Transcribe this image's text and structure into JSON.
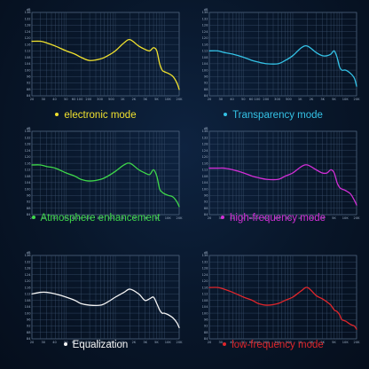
{
  "chart_data": [
    {
      "type": "line",
      "name": "electronic mode",
      "color": "#f0e12e",
      "x": [
        20,
        30,
        40,
        60,
        100,
        150,
        200,
        300,
        500,
        700,
        1000,
        1500,
        2000,
        3000,
        4000,
        5000,
        6000,
        7000,
        8000,
        9000,
        10000,
        12000,
        15000,
        18000,
        20000
      ],
      "y": [
        118,
        118,
        117,
        115,
        112,
        110,
        108,
        106,
        107,
        109,
        112,
        117,
        119,
        115,
        113,
        112,
        114,
        112,
        104,
        100,
        99,
        98,
        96,
        92,
        88
      ],
      "ylabel": "dB",
      "yticks": [
        84,
        88,
        92,
        96,
        100,
        104,
        108,
        112,
        116,
        120,
        124,
        128,
        132,
        136
      ],
      "xticks": [
        "20",
        "30",
        "40",
        "50",
        "60 100",
        "200",
        "300",
        "500",
        "1K",
        "2K",
        "3K",
        "5K",
        "10K",
        "20K"
      ],
      "ylim": [
        84,
        136
      ]
    },
    {
      "type": "line",
      "name": "Transparency mode",
      "color": "#34c2e6",
      "x": [
        20,
        30,
        40,
        60,
        100,
        150,
        200,
        300,
        500,
        700,
        1000,
        1500,
        2000,
        3000,
        4000,
        5000,
        6000,
        7000,
        8000,
        9000,
        10000,
        12000,
        15000,
        18000,
        20000
      ],
      "y": [
        112,
        112,
        111,
        110,
        108,
        106,
        105,
        104,
        104,
        106,
        109,
        114,
        115,
        111,
        109,
        109,
        110,
        112,
        108,
        102,
        100,
        100,
        98,
        95,
        90
      ],
      "ylabel": "dB",
      "yticks": [
        84,
        88,
        92,
        96,
        100,
        104,
        108,
        112,
        116,
        120,
        124,
        128,
        132,
        136
      ],
      "xticks": [
        "20",
        "30",
        "40",
        "50",
        "60 100",
        "200",
        "300",
        "500",
        "1K",
        "2K",
        "3K",
        "5K",
        "10K",
        "20K"
      ],
      "ylim": [
        84,
        136
      ]
    },
    {
      "type": "line",
      "name": "Atmosphere enhancement",
      "color": "#3ed84a",
      "x": [
        20,
        30,
        40,
        60,
        100,
        150,
        200,
        300,
        500,
        700,
        1000,
        1500,
        2000,
        3000,
        4000,
        5000,
        6000,
        7000,
        8000,
        9000,
        10000,
        12000,
        15000,
        18000,
        20000
      ],
      "y": [
        115,
        115,
        114,
        113,
        110,
        108,
        106,
        105,
        106,
        108,
        111,
        115,
        116,
        112,
        110,
        109,
        112,
        108,
        100,
        98,
        97,
        96,
        95,
        92,
        89
      ],
      "ylabel": "dB",
      "yticks": [
        84,
        88,
        92,
        96,
        100,
        104,
        108,
        112,
        116,
        120,
        124,
        128,
        132,
        136
      ],
      "xticks": [
        "20",
        "30",
        "40",
        "50",
        "60 100",
        "200",
        "300",
        "500",
        "1K",
        "2K",
        "3K",
        "5K",
        "10K",
        "20K"
      ],
      "ylim": [
        84,
        136
      ]
    },
    {
      "type": "line",
      "name": "high-frequency mode",
      "color": "#d22ed6",
      "x": [
        20,
        30,
        40,
        60,
        100,
        150,
        200,
        300,
        500,
        700,
        1000,
        1500,
        2000,
        3000,
        4000,
        5000,
        6000,
        7000,
        8000,
        9000,
        10000,
        12000,
        15000,
        18000,
        20000
      ],
      "y": [
        113,
        113,
        113,
        112,
        110,
        108,
        107,
        106,
        106,
        108,
        110,
        114,
        115,
        112,
        110,
        110,
        112,
        110,
        104,
        101,
        100,
        99,
        97,
        93,
        90
      ],
      "ylabel": "dB",
      "yticks": [
        84,
        88,
        92,
        96,
        100,
        104,
        108,
        112,
        116,
        120,
        124,
        128,
        132,
        136
      ],
      "xticks": [
        "20",
        "30",
        "40",
        "50",
        "60 100",
        "200",
        "300",
        "500",
        "1K",
        "2K",
        "3K",
        "5K",
        "10K",
        "20K"
      ],
      "ylim": [
        84,
        136
      ]
    },
    {
      "type": "line",
      "name": "Equalization",
      "color": "#f4f4f4",
      "x": [
        20,
        30,
        40,
        60,
        100,
        150,
        200,
        300,
        500,
        700,
        1000,
        1500,
        2000,
        3000,
        4000,
        5000,
        6000,
        7000,
        8000,
        9000,
        10000,
        12000,
        15000,
        18000,
        20000
      ],
      "y": [
        112,
        113,
        113,
        112,
        110,
        108,
        106,
        105,
        105,
        107,
        110,
        113,
        115,
        112,
        108,
        109,
        110,
        106,
        102,
        100,
        100,
        99,
        97,
        94,
        91
      ],
      "ylabel": "dB",
      "yticks": [
        84,
        88,
        92,
        96,
        100,
        104,
        108,
        112,
        116,
        120,
        124,
        128,
        132,
        136
      ],
      "xticks": [
        "20",
        "30",
        "40",
        "50",
        "60 100",
        "200",
        "300",
        "500",
        "1K",
        "2K",
        "3K",
        "5K",
        "10K",
        "20K"
      ],
      "ylim": [
        84,
        136
      ]
    },
    {
      "type": "line",
      "name": "low-frequency mode",
      "color": "#e0262b",
      "x": [
        20,
        30,
        40,
        60,
        100,
        150,
        200,
        300,
        500,
        700,
        1000,
        1500,
        2000,
        3000,
        4000,
        5000,
        6000,
        7000,
        8000,
        9000,
        10000,
        12000,
        15000,
        18000,
        20000
      ],
      "y": [
        116,
        116,
        115,
        113,
        110,
        108,
        106,
        105,
        106,
        108,
        110,
        114,
        116,
        111,
        109,
        107,
        105,
        102,
        101,
        99,
        96,
        95,
        93,
        92,
        90
      ],
      "ylabel": "dB",
      "yticks": [
        84,
        88,
        92,
        96,
        100,
        104,
        108,
        112,
        116,
        120,
        124,
        128,
        132,
        136
      ],
      "xticks": [
        "20",
        "30",
        "40",
        "50",
        "60 100",
        "200",
        "300",
        "500",
        "1K",
        "2K",
        "3K",
        "5K",
        "10K",
        "20K"
      ],
      "ylim": [
        84,
        136
      ]
    }
  ]
}
